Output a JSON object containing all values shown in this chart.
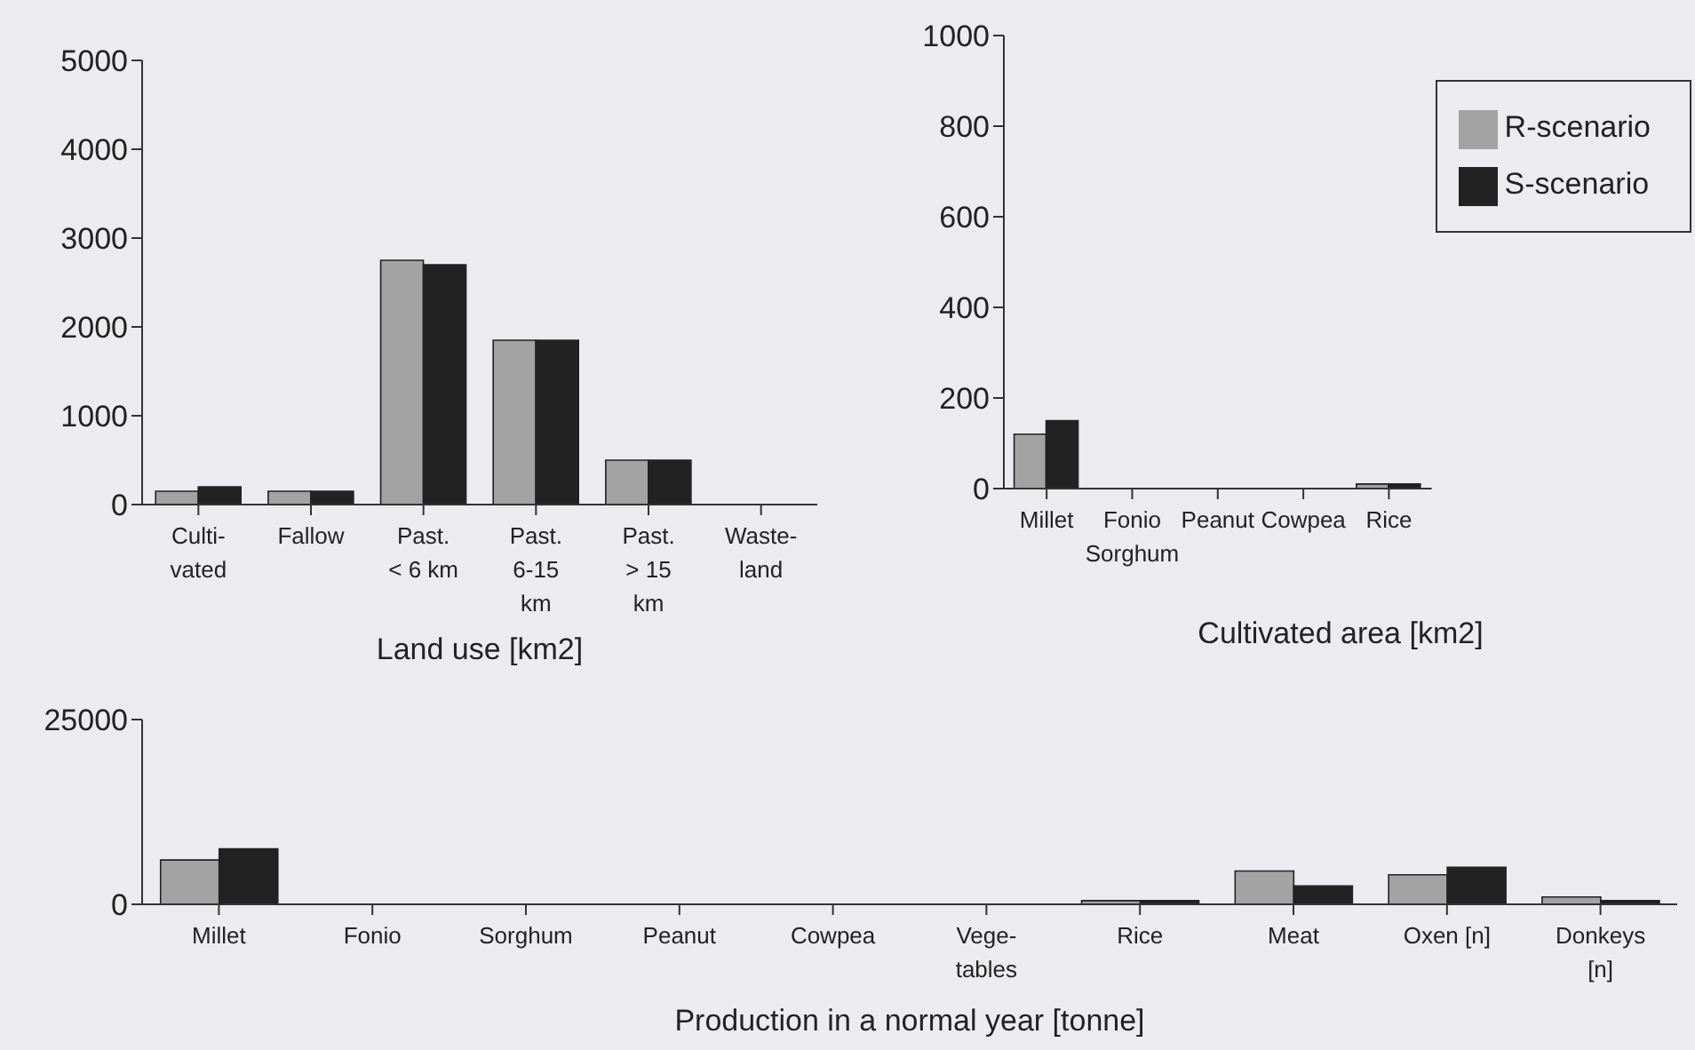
{
  "chart_data": [
    {
      "type": "bar",
      "xlabel": "Land use [km2]",
      "categories": [
        "Culti-\nvated",
        "Fallow",
        "Past.\n< 6 km",
        "Past.\n6-15\nkm",
        "Past.\n> 15\nkm",
        "Waste-\nland"
      ],
      "series": [
        {
          "color": "#a3a3a3",
          "values": [
            150,
            150,
            2750,
            1850,
            500,
            0
          ]
        },
        {
          "color": "#222222",
          "values": [
            200,
            150,
            2700,
            1850,
            500,
            0
          ]
        }
      ],
      "ylim": [
        0,
        5000
      ],
      "yticks": [
        0,
        1000,
        2000,
        3000,
        4000,
        5000
      ],
      "grid": false,
      "legend": false
    },
    {
      "type": "bar",
      "xlabel": "Cultivated area [km2]",
      "categories": [
        "Millet",
        "Fonio\nSorghum",
        "Peanut",
        "Cowpea",
        "Rice"
      ],
      "series": [
        {
          "name": "R-scenario",
          "color": "#a3a3a3",
          "values": [
            120,
            0,
            0,
            0,
            10
          ]
        },
        {
          "name": "S-scenario",
          "color": "#222222",
          "values": [
            150,
            0,
            0,
            0,
            10
          ]
        }
      ],
      "ylim": [
        0,
        1000
      ],
      "yticks": [
        0,
        200,
        400,
        600,
        800,
        1000
      ],
      "grid": false,
      "legend": "top right"
    },
    {
      "type": "bar",
      "xlabel": "Production in a normal year [tonne]",
      "categories": [
        "Millet",
        "Fonio",
        "Sorghum",
        "Peanut",
        "Cowpea",
        "Vege-\ntables",
        "Rice",
        "Meat",
        "Oxen [n]",
        "Donkeys\n[n]"
      ],
      "series": [
        {
          "color": "#a3a3a3",
          "values": [
            6000,
            0,
            0,
            0,
            0,
            0,
            500,
            4500,
            4000,
            1000
          ]
        },
        {
          "color": "#222222",
          "values": [
            7500,
            0,
            0,
            0,
            0,
            0,
            500,
            2500,
            5000,
            500
          ]
        }
      ],
      "ylim": [
        0,
        25000
      ],
      "yticks": [
        0,
        25000
      ],
      "grid": false,
      "legend": false
    }
  ]
}
